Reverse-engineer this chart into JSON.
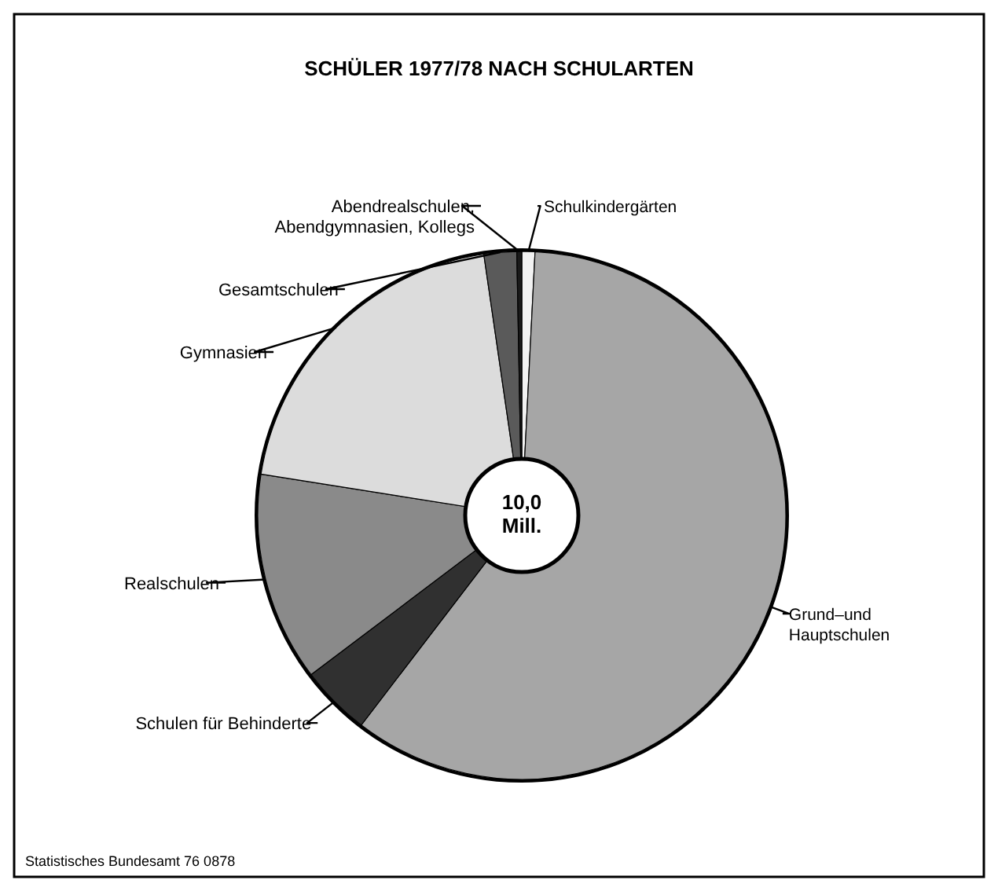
{
  "chart_data": {
    "type": "donut",
    "title": "SCHÜLER 1977/78 NACH SCHULARTEN",
    "categories": [
      "Schulkindergärten",
      "Grund–und Hauptschulen",
      "Schulen für Behinderte",
      "Realschulen",
      "Gymnasien",
      "Gesamtschulen",
      "Abendrealschulen, Abendgymnasien, Kollegs"
    ],
    "values": [
      0.8,
      59.6,
      4.3,
      12.8,
      20.2,
      2.0,
      0.3
    ],
    "colors": [
      "#f2f2f2",
      "#a6a6a6",
      "#303030",
      "#8a8a8a",
      "#dcdcdc",
      "#5a5a5a",
      "#1a1a1a"
    ],
    "annotations": [
      "10,0 Mill.",
      "Statistisches Bundesamt 76 0878"
    ]
  }
}
